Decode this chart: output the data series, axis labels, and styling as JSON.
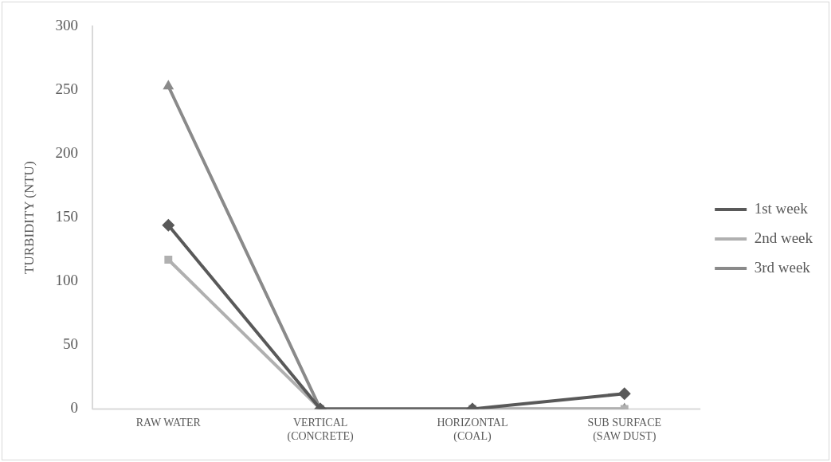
{
  "chart_data": {
    "type": "line",
    "ylabel": "TURBIDITY (NTU)",
    "categories": [
      "RAW WATER",
      "VERTICAL (CONCRETE)",
      "HORIZONTAL (COAL)",
      "SUB SURFACE (SAW DUST)"
    ],
    "series": [
      {
        "name": "1st week",
        "color": "#595959",
        "marker": "diamond",
        "values": [
          144,
          0,
          0,
          12
        ]
      },
      {
        "name": "2nd week",
        "color": "#b0b0b0",
        "marker": "square",
        "values": [
          117,
          0,
          0,
          0
        ]
      },
      {
        "name": "3rd week",
        "color": "#8a8a8a",
        "marker": "triangle",
        "values": [
          253,
          0,
          0,
          0
        ]
      }
    ],
    "ylim": [
      0,
      300
    ],
    "yticks": [
      0,
      50,
      100,
      150,
      200,
      250,
      300
    ],
    "grid": false,
    "legend": "right",
    "line_style": "solid"
  }
}
